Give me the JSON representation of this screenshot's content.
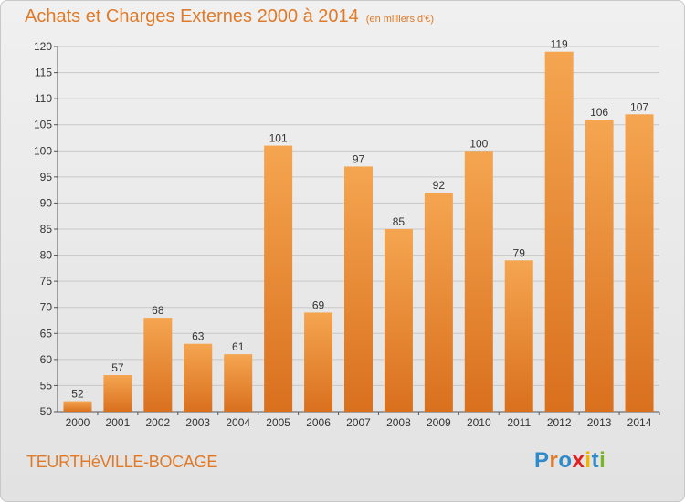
{
  "header": {
    "title": "Achats et Charges Externes 2000 à 2014",
    "subtitle": "(en milliers d'€)"
  },
  "footer": {
    "place": "TEURTHéVILLE-BOCAGE",
    "logo": "Proxiti"
  },
  "colors": {
    "bar_top": "#f5a550",
    "bar_bottom": "#d9701e",
    "accent": "#e07a28",
    "grid": "#c8c8c8",
    "logo_letters": [
      "#2e8bc9",
      "#e07a28",
      "#2e8bc9",
      "#e0201e",
      "#f0b400",
      "#2e8bc9",
      "#78b428"
    ]
  },
  "chart_data": {
    "type": "bar",
    "categories": [
      "2000",
      "2001",
      "2002",
      "2003",
      "2004",
      "2005",
      "2006",
      "2007",
      "2008",
      "2009",
      "2010",
      "2011",
      "2012",
      "2013",
      "2014"
    ],
    "values": [
      52,
      57,
      68,
      63,
      61,
      101,
      69,
      97,
      85,
      92,
      100,
      79,
      119,
      106,
      107
    ],
    "yticks": [
      50,
      55,
      60,
      65,
      70,
      75,
      80,
      85,
      90,
      95,
      100,
      105,
      110,
      115,
      120
    ],
    "ylim": [
      50,
      120
    ],
    "grid": true,
    "xlabel": "",
    "ylabel": ""
  }
}
